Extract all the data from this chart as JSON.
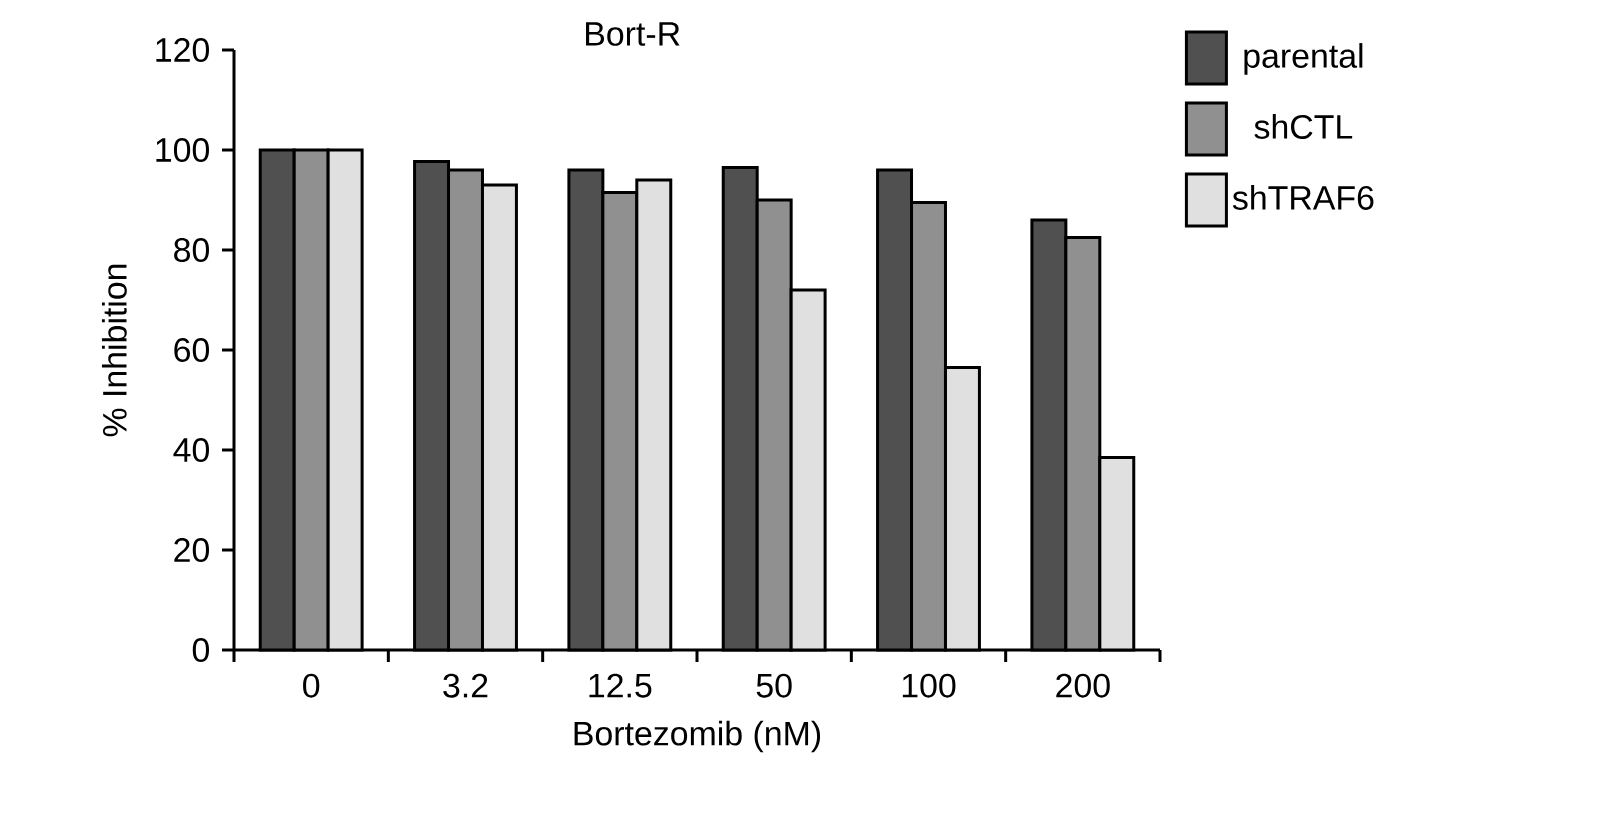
{
  "chart_data": {
    "type": "bar",
    "title": "Bort-R",
    "xlabel": "Bortezomib (nM)",
    "ylabel": "% Inhibition",
    "categories": [
      "0",
      "3.2",
      "12.5",
      "50",
      "100",
      "200"
    ],
    "series": [
      {
        "name": "parental",
        "color": "#505050",
        "values": [
          100,
          97.7,
          96,
          96.5,
          96,
          86
        ]
      },
      {
        "name": "shCTL",
        "color": "#909090",
        "values": [
          100,
          96,
          91.5,
          90,
          89.5,
          82.5
        ]
      },
      {
        "name": "shTRAF6",
        "color": "#e0e0e0",
        "values": [
          100,
          93,
          94,
          72,
          56.5,
          38.5
        ]
      }
    ],
    "ylim": [
      0,
      120
    ],
    "yticks": [
      0,
      20,
      40,
      60,
      80,
      100,
      120
    ],
    "grid": false,
    "legend": "right"
  }
}
